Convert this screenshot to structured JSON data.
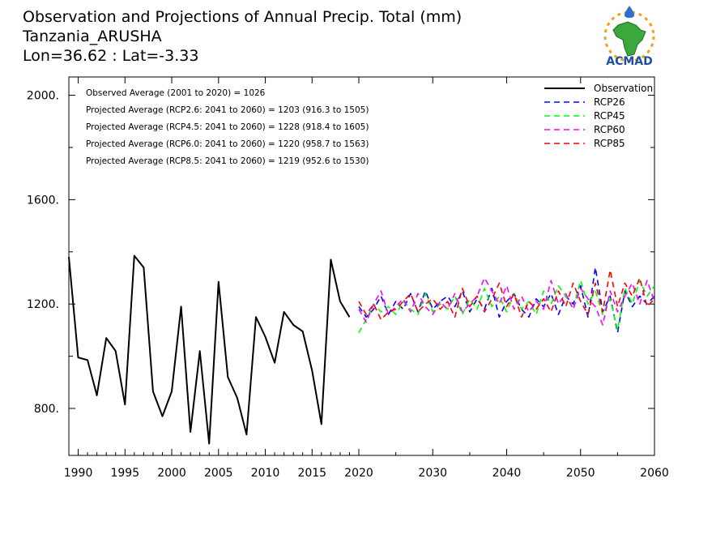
{
  "header": {
    "line1": "Observation and Projections of Annual Precip. Total (mm)",
    "line2": "Tanzania_ARUSHA",
    "line3": "Lon=36.62 : Lat=-3.33"
  },
  "logo": {
    "text": "ACMAD"
  },
  "summary": [
    "Observed Average (2001 to 2020) = 1026",
    "Projected Average (RCP2.6: 2041 to 2060) = 1203 (916.3 to 1505)",
    "Projected Average (RCP4.5: 2041 to 2060) = 1228 (918.4 to 1605)",
    "Projected Average (RCP6.0: 2041 to 2060) = 1220 (958.7 to 1563)",
    "Projected Average (RCP8.5: 2041 to 2060) = 1219 (952.6 to 1530)"
  ],
  "chart_data": {
    "type": "line",
    "title": "Observation and Projections of Annual Precip. Total (mm)",
    "xlim": [
      1989,
      2060
    ],
    "ylim": [
      620,
      2070
    ],
    "x_break": 2020,
    "x_ticks_left": [
      1990,
      1995,
      2000,
      2005,
      2010,
      2015,
      2020
    ],
    "x_ticks_right": [
      2030,
      2040,
      2050,
      2060
    ],
    "y_ticks": [
      800,
      1200,
      1600,
      2000
    ],
    "y_tick_labels": [
      "800.",
      "1200.",
      "1600.",
      "2000."
    ],
    "legend_position": "top-right",
    "series": [
      {
        "name": "Observation",
        "color": "#000000",
        "dashed": false,
        "x": [
          1989,
          1990,
          1991,
          1992,
          1993,
          1994,
          1995,
          1996,
          1997,
          1998,
          1999,
          2000,
          2001,
          2002,
          2003,
          2004,
          2005,
          2006,
          2007,
          2008,
          2009,
          2010,
          2011,
          2012,
          2013,
          2014,
          2015,
          2016,
          2017,
          2018,
          2019
        ],
        "values": [
          1380,
          995,
          985,
          850,
          1070,
          1020,
          815,
          1385,
          1340,
          865,
          770,
          865,
          1190,
          710,
          1020,
          665,
          1285,
          920,
          840,
          700,
          1150,
          1075,
          975,
          1170,
          1120,
          1095,
          945,
          740,
          1370,
          1210,
          1150
        ]
      },
      {
        "name": "RCP26",
        "color": "#0000ff",
        "dashed": true,
        "x": [
          2020,
          2021,
          2022,
          2023,
          2024,
          2025,
          2026,
          2027,
          2028,
          2029,
          2030,
          2031,
          2032,
          2033,
          2034,
          2035,
          2036,
          2037,
          2038,
          2039,
          2040,
          2041,
          2042,
          2043,
          2044,
          2045,
          2046,
          2047,
          2048,
          2049,
          2050,
          2051,
          2052,
          2053,
          2054,
          2055,
          2056,
          2057,
          2058,
          2059,
          2060
        ],
        "values": [
          1190,
          1150,
          1180,
          1230,
          1160,
          1210,
          1180,
          1240,
          1170,
          1250,
          1180,
          1210,
          1230,
          1190,
          1250,
          1170,
          1220,
          1180,
          1260,
          1150,
          1210,
          1240,
          1180,
          1150,
          1220,
          1190,
          1240,
          1160,
          1230,
          1200,
          1270,
          1150,
          1340,
          1170,
          1230,
          1090,
          1250,
          1190,
          1230,
          1200,
          1230
        ]
      },
      {
        "name": "RCP45",
        "color": "#00ff00",
        "dashed": true,
        "x": [
          2020,
          2021,
          2022,
          2023,
          2024,
          2025,
          2026,
          2027,
          2028,
          2029,
          2030,
          2031,
          2032,
          2033,
          2034,
          2035,
          2036,
          2037,
          2038,
          2039,
          2040,
          2041,
          2042,
          2043,
          2044,
          2045,
          2046,
          2047,
          2048,
          2049,
          2050,
          2051,
          2052,
          2053,
          2054,
          2055,
          2056,
          2057,
          2058,
          2059,
          2060
        ],
        "values": [
          1090,
          1140,
          1200,
          1170,
          1190,
          1160,
          1210,
          1180,
          1160,
          1240,
          1170,
          1200,
          1180,
          1230,
          1160,
          1220,
          1180,
          1260,
          1190,
          1230,
          1170,
          1240,
          1180,
          1210,
          1160,
          1250,
          1200,
          1270,
          1230,
          1180,
          1290,
          1200,
          1250,
          1160,
          1220,
          1100,
          1260,
          1200,
          1290,
          1230,
          1270
        ]
      },
      {
        "name": "RCP60",
        "color": "#ff00ff",
        "dashed": true,
        "x": [
          2020,
          2021,
          2022,
          2023,
          2024,
          2025,
          2026,
          2027,
          2028,
          2029,
          2030,
          2031,
          2032,
          2033,
          2034,
          2035,
          2036,
          2037,
          2038,
          2039,
          2040,
          2041,
          2042,
          2043,
          2044,
          2045,
          2046,
          2047,
          2048,
          2049,
          2050,
          2051,
          2052,
          2053,
          2054,
          2055,
          2056,
          2057,
          2058,
          2059,
          2060
        ],
        "values": [
          1180,
          1130,
          1200,
          1250,
          1160,
          1190,
          1220,
          1170,
          1240,
          1190,
          1160,
          1210,
          1180,
          1240,
          1170,
          1200,
          1230,
          1300,
          1250,
          1200,
          1270,
          1180,
          1230,
          1170,
          1210,
          1180,
          1290,
          1200,
          1240,
          1180,
          1260,
          1220,
          1190,
          1120,
          1250,
          1170,
          1230,
          1280,
          1200,
          1290,
          1210
        ]
      },
      {
        "name": "RCP85",
        "color": "#ff0000",
        "dashed": true,
        "x": [
          2020,
          2021,
          2022,
          2023,
          2024,
          2025,
          2026,
          2027,
          2028,
          2029,
          2030,
          2031,
          2032,
          2033,
          2034,
          2035,
          2036,
          2037,
          2038,
          2039,
          2040,
          2041,
          2042,
          2043,
          2044,
          2045,
          2046,
          2047,
          2048,
          2049,
          2050,
          2051,
          2052,
          2053,
          2054,
          2055,
          2056,
          2057,
          2058,
          2059,
          2060
        ],
        "values": [
          1210,
          1160,
          1200,
          1140,
          1170,
          1180,
          1210,
          1240,
          1170,
          1200,
          1220,
          1180,
          1210,
          1150,
          1260,
          1190,
          1230,
          1170,
          1220,
          1280,
          1190,
          1240,
          1150,
          1210,
          1180,
          1220,
          1170,
          1250,
          1190,
          1280,
          1210,
          1160,
          1280,
          1170,
          1330,
          1190,
          1280,
          1230,
          1300,
          1190,
          1220
        ]
      }
    ]
  }
}
